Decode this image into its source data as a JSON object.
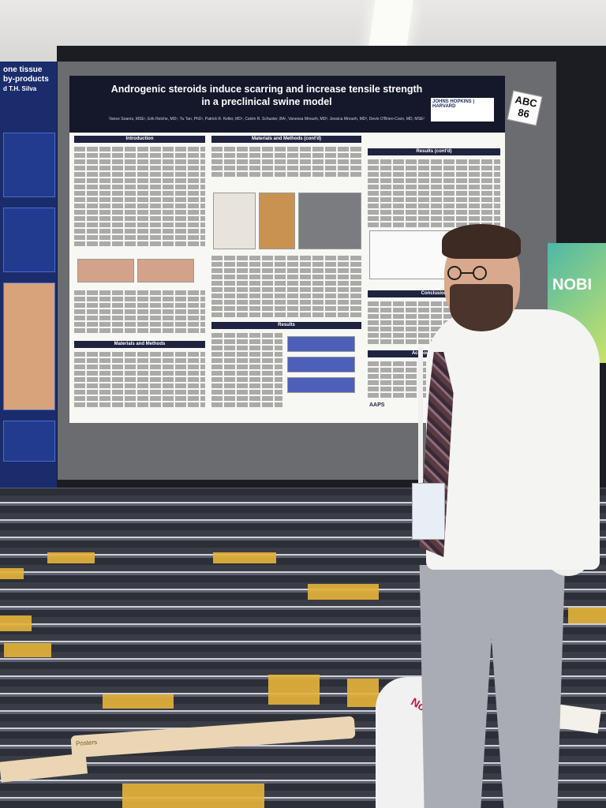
{
  "poster": {
    "title_line1": "Androgenic steroids induce scarring and increase tensile strength",
    "title_line2": "in a preclinical swine model",
    "authors": "Vance Soares, MSE¹, Erik Reiche, MD¹, Yu Tan, PhD¹, Patrick R. Keller, MD¹, Calvin R. Schuster, BA¹, Vanessa Mroueh, MD², Jessica Mroueh, MD², Devin O'Brien-Coon, MD, MSE²",
    "logo_text": "JOHNS HOPKINS | HARVARD",
    "sections": {
      "introduction": "Introduction",
      "materials_methods": "Materials and Methods",
      "materials_methods_cont": "Materials and Methods (cont'd)",
      "results": "Results",
      "results_cont": "Results (cont'd)",
      "conclusion": "Conclusion",
      "acknowledgements": "Acknowledgements"
    },
    "aaps_label": "AAPS"
  },
  "badge": {
    "line1": "ABC",
    "line2": "86"
  },
  "left_poster": {
    "title_part1": "one tissue",
    "title_part2": "by-products",
    "author": "d T.H. Silva"
  },
  "right_banner": {
    "text": "NOBI"
  },
  "tube_label": "Posters",
  "bag_text": "Nord"
}
